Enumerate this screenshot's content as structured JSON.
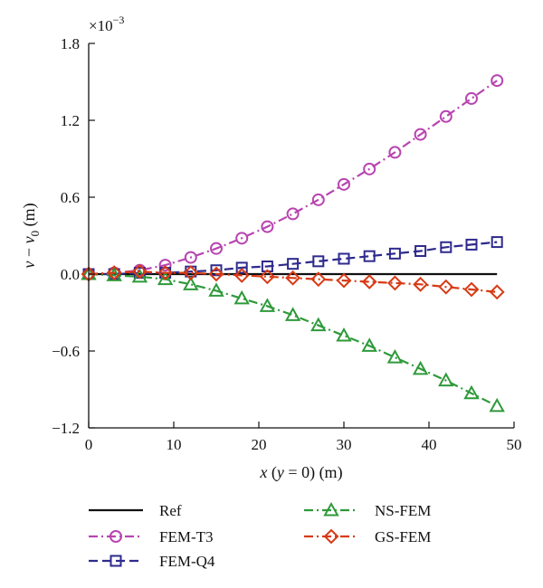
{
  "chart_data": {
    "type": "line",
    "title": "",
    "xlabel": "x (y = 0) (m)",
    "ylabel": "v − v0 (m)",
    "ylabel_parts": {
      "var": "v",
      "minus": "−",
      "var2": "v",
      "sub": "0",
      "unit": " (m)"
    },
    "xlabel_parts": {
      "var": "x",
      "inner": " (",
      "var2": "y",
      "eq": " = 0) (m)"
    },
    "y_multiplier_base": "×10",
    "y_multiplier_exp": "−3",
    "xlim": [
      0,
      50
    ],
    "ylim": [
      -1.2,
      1.8
    ],
    "x_ticks": [
      0,
      10,
      20,
      30,
      40,
      50
    ],
    "x_tick_labels": [
      "0",
      "10",
      "20",
      "30",
      "40",
      "50"
    ],
    "y_ticks": [
      -1.2,
      -0.6,
      0.0,
      0.6,
      1.2,
      1.8
    ],
    "y_tick_labels": [
      "−1.2",
      "−0.6",
      "0.0",
      "0.6",
      "1.2",
      "1.8"
    ],
    "grid": false,
    "legend_placement": "below",
    "x": [
      0,
      3,
      6,
      9,
      12,
      15,
      18,
      21,
      24,
      27,
      30,
      33,
      36,
      39,
      42,
      45,
      48
    ],
    "series": [
      {
        "name": "Ref",
        "color": "#111111",
        "marker": "none",
        "dash": "solid",
        "x": [
          0,
          48
        ],
        "values": [
          0,
          0
        ]
      },
      {
        "name": "FEM-T3",
        "color": "#b845b0",
        "marker": "circle",
        "dash": "dashdot",
        "values": [
          0,
          0.01,
          0.03,
          0.07,
          0.13,
          0.2,
          0.28,
          0.37,
          0.47,
          0.58,
          0.7,
          0.82,
          0.95,
          1.09,
          1.23,
          1.37,
          1.51
        ]
      },
      {
        "name": "FEM-Q4",
        "color": "#2e2a8c",
        "marker": "square",
        "dash": "dashed",
        "values": [
          0,
          0.0,
          0.01,
          0.01,
          0.02,
          0.03,
          0.05,
          0.06,
          0.08,
          0.1,
          0.12,
          0.14,
          0.16,
          0.18,
          0.21,
          0.23,
          0.25
        ]
      },
      {
        "name": "NS-FEM",
        "color": "#2e9a3a",
        "marker": "triangle",
        "dash": "dashdot",
        "values": [
          0,
          -0.01,
          -0.02,
          -0.04,
          -0.08,
          -0.13,
          -0.19,
          -0.25,
          -0.32,
          -0.4,
          -0.48,
          -0.56,
          -0.65,
          -0.74,
          -0.83,
          -0.93,
          -1.03
        ]
      },
      {
        "name": "GS-FEM",
        "color": "#d83a14",
        "marker": "diamond",
        "dash": "dashdot",
        "values": [
          0,
          0.01,
          0.02,
          0.01,
          0.01,
          0.0,
          -0.01,
          -0.02,
          -0.03,
          -0.04,
          -0.05,
          -0.06,
          -0.07,
          -0.08,
          -0.1,
          -0.12,
          -0.14
        ]
      }
    ]
  }
}
